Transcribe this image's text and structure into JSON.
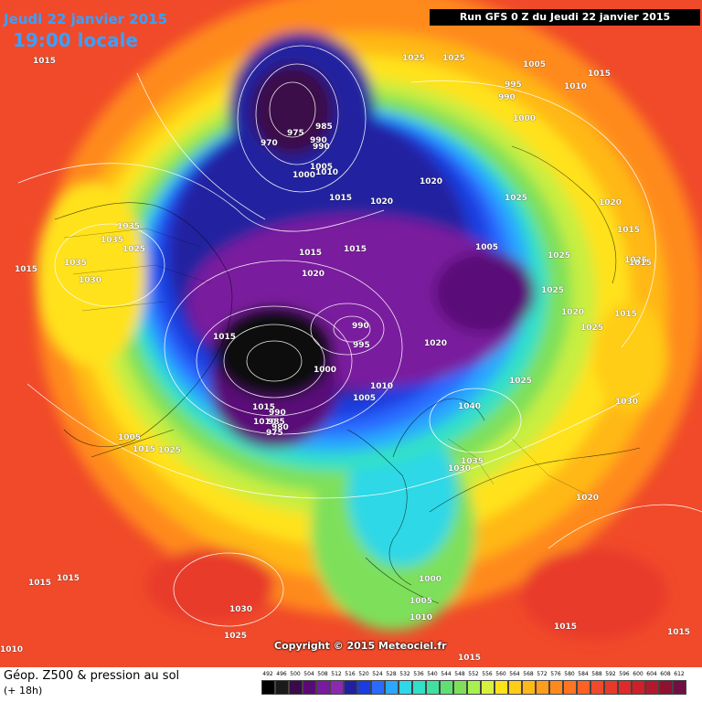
{
  "header": {
    "date": "Jeudi 22 janvier 2015",
    "time": "19:00 locale",
    "run": "Run GFS 0 Z du Jeudi 22 janvier 2015"
  },
  "copyright": "Copyright © 2015 Meteociel.fr",
  "footer": {
    "title": "Géop. Z500 & pression au sol",
    "subtitle": "(+ 18h)"
  },
  "colors": {
    "background_warm": "#f04a2a",
    "orange": "#ff8a1c",
    "yellow": "#ffe21a",
    "green": "#7ee05a",
    "cyan": "#2ed8e6",
    "blue": "#1a3ce0",
    "purple": "#7a1a9e",
    "core": "#101010"
  },
  "scale_values": [
    "492",
    "496",
    "500",
    "504",
    "508",
    "512",
    "516",
    "520",
    "524",
    "528",
    "532",
    "536",
    "540",
    "544",
    "548",
    "552",
    "556",
    "560",
    "564",
    "568",
    "572",
    "576",
    "580",
    "584",
    "588",
    "592",
    "596",
    "600",
    "604",
    "608",
    "612"
  ],
  "scale_colors": [
    "#000000",
    "#1a1a1a",
    "#3a0a4a",
    "#5a0a78",
    "#7a1a9e",
    "#8a2ab0",
    "#2020a0",
    "#1a3ce0",
    "#2a6aff",
    "#2aa8ff",
    "#2ed8e6",
    "#30e0c8",
    "#40e0a0",
    "#60e070",
    "#7ee05a",
    "#a8f050",
    "#d8f040",
    "#ffe21a",
    "#ffcc18",
    "#ffb818",
    "#ff9e1c",
    "#ff8a1c",
    "#ff7420",
    "#ff6024",
    "#f04a2a",
    "#e83a2a",
    "#dd2a2a",
    "#d01e2a",
    "#b01a2a",
    "#901030",
    "#701040"
  ],
  "isobars": [
    "1015",
    "1025",
    "1005",
    "1015",
    "990",
    "995",
    "1010",
    "1000",
    "985",
    "975",
    "970",
    "990",
    "990",
    "1005",
    "1000",
    "1010",
    "1015",
    "1025",
    "1020",
    "1020",
    "1025",
    "1035",
    "1035",
    "1025",
    "1035",
    "1030",
    "1015",
    "1015",
    "1020",
    "1015",
    "1005",
    "1025",
    "1025",
    "1015",
    "1015",
    "1025",
    "1020",
    "1025",
    "1020",
    "1015",
    "990",
    "995",
    "1020",
    "1000",
    "1010",
    "1005",
    "1025",
    "1015",
    "1040",
    "1010",
    "990",
    "985",
    "980",
    "975",
    "1005",
    "1015",
    "1025",
    "1035",
    "1030",
    "1030",
    "1020",
    "1015",
    "1000",
    "1005",
    "1010",
    "1030",
    "1025",
    "1015",
    "1010",
    "1015",
    "1015",
    "1015",
    "1015"
  ]
}
